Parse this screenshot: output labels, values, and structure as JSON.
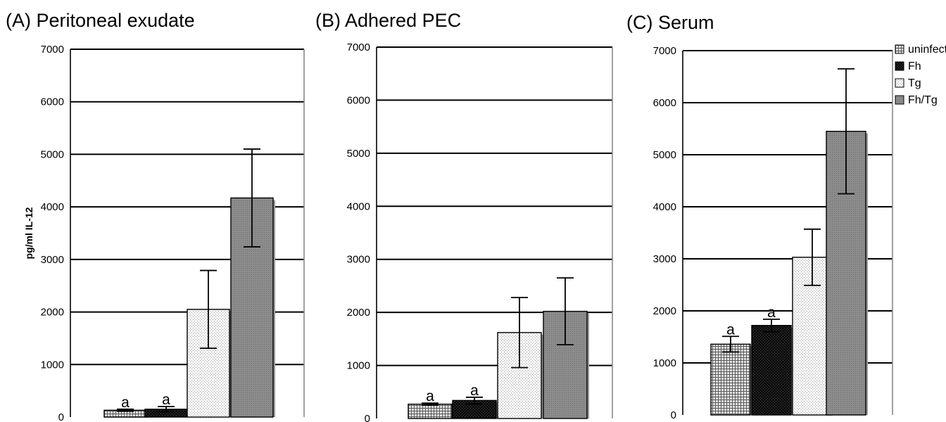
{
  "figure": {
    "colors": {
      "uninfected": "#cfcfcf",
      "Fh": "#111111",
      "Tg": "#f4f4f4",
      "Fh/Tg": "#8a8a8a",
      "gridline": "#000000",
      "shadow": "#9a9a9a"
    }
  },
  "chart_data": [
    {
      "type": "bar",
      "title": "(A) Peritoneal exudate",
      "ylabel": "pg/ml IL-12",
      "ylim": [
        0,
        7000
      ],
      "yticks": [
        0,
        1000,
        2000,
        3000,
        4000,
        5000,
        6000,
        7000
      ],
      "grid": true,
      "categories": [
        "uninfected",
        "Fh",
        "Tg",
        "Fh/Tg"
      ],
      "series": [
        {
          "name": "uninfected",
          "value": 130,
          "error": 20,
          "label": "a"
        },
        {
          "name": "Fh",
          "value": 150,
          "error": 50,
          "label": "a"
        },
        {
          "name": "Tg",
          "value": 2050,
          "error": 740,
          "label": ""
        },
        {
          "name": "Fh/Tg",
          "value": 4170,
          "error": 930,
          "label": ""
        }
      ]
    },
    {
      "type": "bar",
      "title": "(B) Adhered PEC",
      "ylabel": "",
      "ylim": [
        0,
        7000
      ],
      "yticks": [
        0,
        1000,
        2000,
        3000,
        4000,
        5000,
        6000,
        7000
      ],
      "grid": true,
      "categories": [
        "uninfected",
        "Fh",
        "Tg",
        "Fh/Tg"
      ],
      "series": [
        {
          "name": "uninfected",
          "value": 270,
          "error": 20,
          "label": "a"
        },
        {
          "name": "Fh",
          "value": 340,
          "error": 60,
          "label": "a"
        },
        {
          "name": "Tg",
          "value": 1620,
          "error": 660,
          "label": ""
        },
        {
          "name": "Fh/Tg",
          "value": 2020,
          "error": 630,
          "label": ""
        }
      ]
    },
    {
      "type": "bar",
      "title": "(C) Serum",
      "ylabel": "",
      "ylim": [
        0,
        7000
      ],
      "yticks": [
        0,
        1000,
        2000,
        3000,
        4000,
        5000,
        6000,
        7000
      ],
      "grid": true,
      "categories": [
        "uninfected",
        "Fh",
        "Tg",
        "Fh/Tg"
      ],
      "series": [
        {
          "name": "uninfected",
          "value": 1360,
          "error": 150,
          "label": "a"
        },
        {
          "name": "Fh",
          "value": 1720,
          "error": 120,
          "label": "a"
        },
        {
          "name": "Tg",
          "value": 3030,
          "error": 540,
          "label": ""
        },
        {
          "name": "Fh/Tg",
          "value": 5450,
          "error": 1200,
          "label": ""
        }
      ],
      "legend": {
        "position": "top-right",
        "entries": [
          "uninfected",
          "Fh",
          "Tg",
          "Fh/Tg"
        ]
      }
    }
  ]
}
